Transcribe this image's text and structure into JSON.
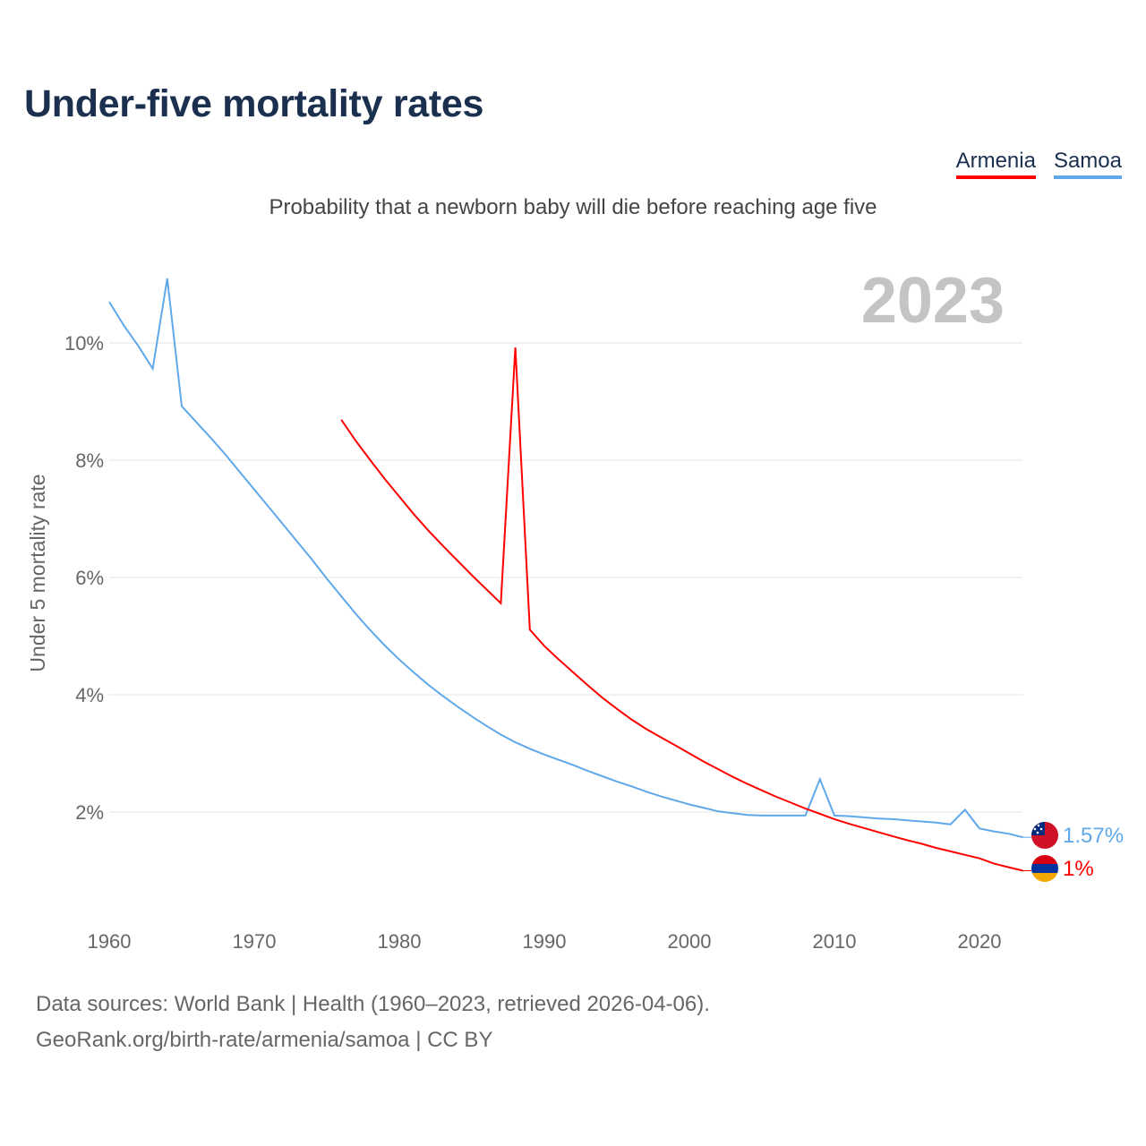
{
  "title": "Under-five mortality rates",
  "subtitle": "Probability that a newborn baby will die before reaching age five",
  "legend": [
    {
      "label": "Armenia",
      "color": "#ff0000"
    },
    {
      "label": "Samoa",
      "color": "#5fa8ea"
    }
  ],
  "year_badge": "2023",
  "footer": {
    "line1": "Data sources: World Bank | Health (1960–2023, retrieved 2026-04-06).",
    "line2": "GeoRank.org/birth-rate/armenia/samoa | CC BY"
  },
  "chart_data": {
    "type": "line",
    "title": "Under-five mortality rates",
    "ylabel": "Under 5 mortality rate",
    "xlabel": "",
    "xlim": [
      1960,
      2023
    ],
    "ylim": [
      0,
      11.5
    ],
    "x_ticks": [
      1960,
      1970,
      1980,
      1990,
      2000,
      2010,
      2020
    ],
    "x_tick_labels": [
      "1960",
      "1970",
      "1980",
      "1990",
      "2000",
      "2010",
      "2020"
    ],
    "y_ticks": [
      2,
      4,
      6,
      8,
      10
    ],
    "y_tick_labels": [
      "2%",
      "4%",
      "6%",
      "8%",
      "10%"
    ],
    "grid": true,
    "legend_position": "top-right",
    "series": [
      {
        "name": "Armenia",
        "color": "#ff0000",
        "end_label": "1%",
        "start_year": 1976,
        "values": [
          8.69,
          8.33,
          8.0,
          7.68,
          7.38,
          7.08,
          6.8,
          6.54,
          6.29,
          6.04,
          5.8,
          5.56,
          9.92,
          5.11,
          4.83,
          4.6,
          4.38,
          4.16,
          3.95,
          3.76,
          3.58,
          3.42,
          3.28,
          3.14,
          3.0,
          2.86,
          2.73,
          2.6,
          2.48,
          2.37,
          2.26,
          2.16,
          2.06,
          1.97,
          1.88,
          1.8,
          1.73,
          1.66,
          1.59,
          1.52,
          1.46,
          1.39,
          1.33,
          1.27,
          1.21,
          1.12,
          1.06,
          1.0
        ]
      },
      {
        "name": "Samoa",
        "color": "#5fa8ea",
        "end_label": "1.57%",
        "start_year": 1960,
        "values": [
          10.7,
          10.3,
          9.95,
          9.56,
          11.1,
          8.92,
          8.65,
          8.38,
          8.1,
          7.8,
          7.5,
          7.2,
          6.9,
          6.6,
          6.3,
          5.98,
          5.68,
          5.38,
          5.1,
          4.84,
          4.6,
          4.38,
          4.17,
          3.98,
          3.8,
          3.63,
          3.47,
          3.32,
          3.19,
          3.08,
          2.98,
          2.89,
          2.8,
          2.7,
          2.61,
          2.52,
          2.44,
          2.35,
          2.27,
          2.2,
          2.13,
          2.07,
          2.01,
          1.98,
          1.95,
          1.94,
          1.94,
          1.94,
          1.94,
          2.56,
          1.94,
          1.93,
          1.91,
          1.89,
          1.88,
          1.86,
          1.84,
          1.82,
          1.79,
          2.04,
          1.72,
          1.67,
          1.63,
          1.57
        ]
      }
    ]
  }
}
